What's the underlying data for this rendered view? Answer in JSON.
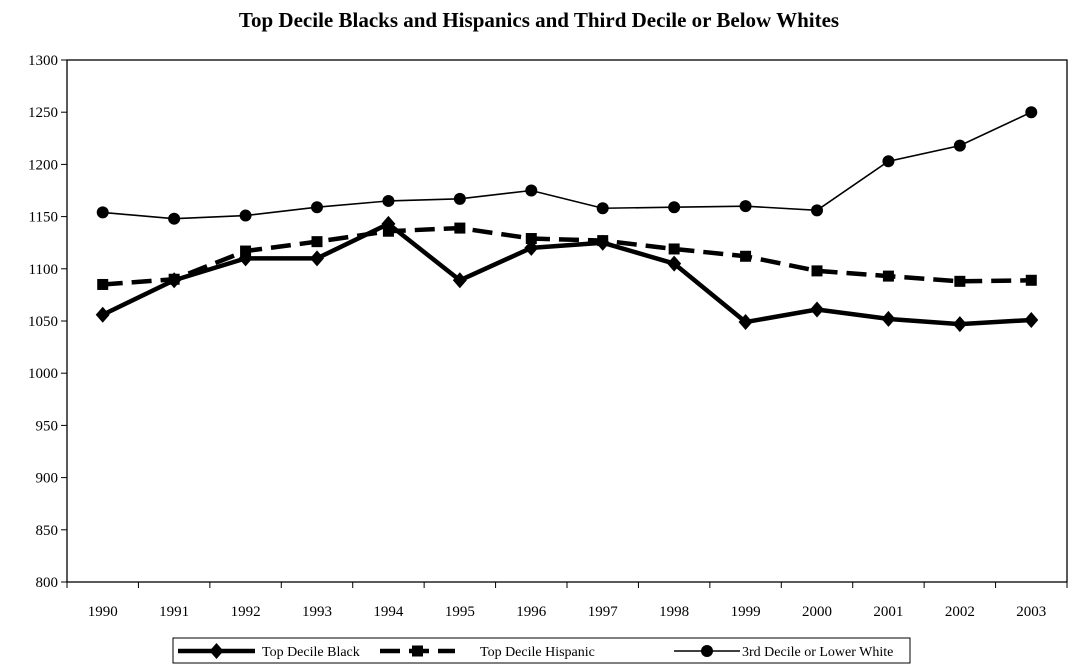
{
  "chart_data": {
    "type": "line",
    "title": "Top Decile Blacks and Hispanics and Third Decile or Below Whites",
    "xlabel": "",
    "ylabel": "",
    "ylim": [
      800,
      1300
    ],
    "yticks": [
      800,
      850,
      900,
      950,
      1000,
      1050,
      1100,
      1150,
      1200,
      1250,
      1300
    ],
    "categories": [
      "1990",
      "1991",
      "1992",
      "1993",
      "1994",
      "1995",
      "1996",
      "1997",
      "1998",
      "1999",
      "2000",
      "2001",
      "2002",
      "2003"
    ],
    "grid": false,
    "legend_position": "bottom",
    "series": [
      {
        "name": "Top Decile Black",
        "marker": "diamond",
        "line_style": "solid-thick",
        "color": "#000000",
        "values": [
          1056,
          1089,
          1110,
          1110,
          1143,
          1089,
          1120,
          1125,
          1105,
          1049,
          1061,
          1052,
          1047,
          1051
        ]
      },
      {
        "name": "Top Decile Hispanic",
        "marker": "square",
        "line_style": "dashed-thick",
        "color": "#000000",
        "values": [
          1085,
          1090,
          1117,
          1126,
          1136,
          1139,
          1129,
          1127,
          1119,
          1112,
          1098,
          1093,
          1088,
          1089
        ]
      },
      {
        "name": "3rd Decile or Lower White",
        "marker": "circle",
        "line_style": "solid-thin",
        "color": "#000000",
        "values": [
          1154,
          1148,
          1151,
          1159,
          1165,
          1167,
          1175,
          1158,
          1159,
          1160,
          1156,
          1203,
          1218,
          1250
        ]
      }
    ]
  }
}
